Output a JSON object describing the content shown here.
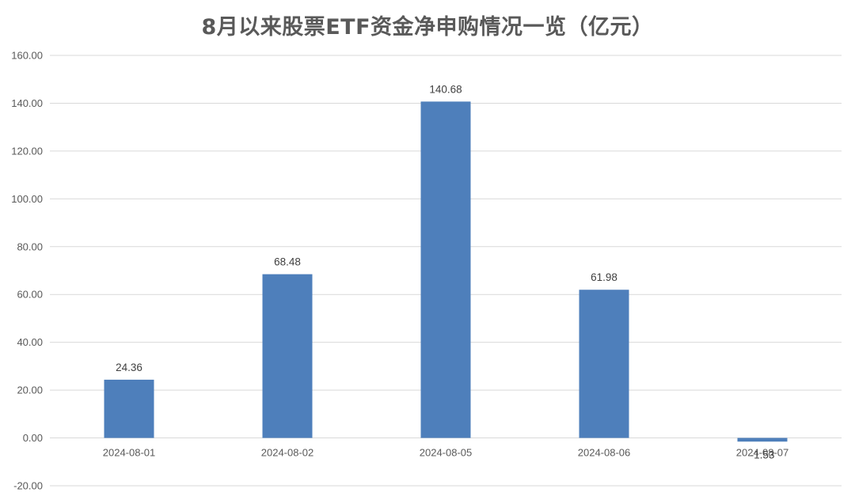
{
  "chart_data": {
    "type": "bar",
    "title": "8月以来股票ETF资金净申购情况一览（亿元）",
    "xlabel": "",
    "ylabel": "",
    "categories": [
      "2024-08-01",
      "2024-08-02",
      "2024-08-05",
      "2024-08-06",
      "2024-08-07"
    ],
    "values": [
      24.36,
      68.48,
      140.68,
      61.98,
      -1.53
    ],
    "data_labels": [
      "24.36",
      "68.48",
      "140.68",
      "61.98",
      "-1.53"
    ],
    "ylim": [
      -20,
      160
    ],
    "yticks": [
      "-20.00",
      "0.00",
      "20.00",
      "40.00",
      "60.00",
      "80.00",
      "100.00",
      "120.00",
      "140.00",
      "160.00"
    ],
    "grid": true,
    "legend": "none",
    "colors": {
      "bar": "#4e7fbb",
      "grid": "#d9d9d9",
      "text": "#595959"
    }
  }
}
